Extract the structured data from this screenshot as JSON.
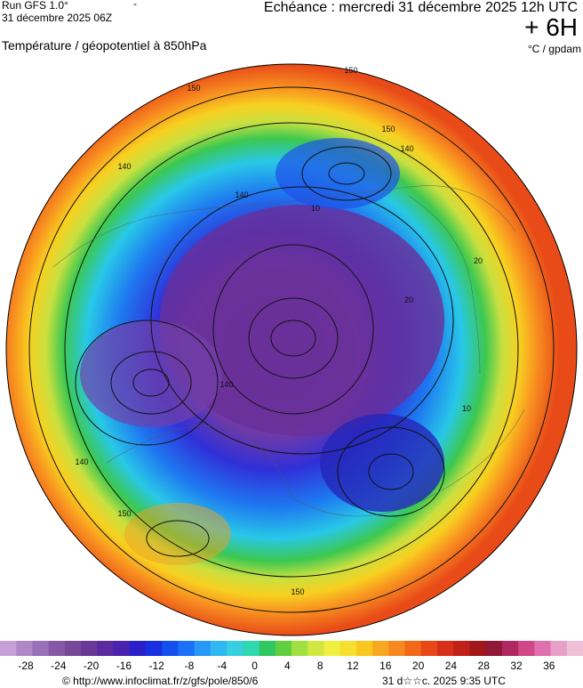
{
  "header": {
    "run": "Run GFS 1.0°",
    "mark": "-",
    "date": "31 décembre 2025 06Z",
    "echeance": "Echéance : mercredi 31 décembre 2025 12h UTC",
    "offset": "+ 6H",
    "field": "Température / géopotentiel à 850hPa",
    "units": "°C / gpdam"
  },
  "map": {
    "labels": [
      "150",
      "150",
      "150",
      "140",
      "140",
      "140",
      "10",
      "20",
      "20",
      "10",
      "140",
      "150",
      "150",
      "140"
    ]
  },
  "colorbar": {
    "labels": [
      "-28",
      "-24",
      "-20",
      "-16",
      "-12",
      "-8",
      "-4",
      "0",
      "4",
      "8",
      "12",
      "16",
      "20",
      "24",
      "28",
      "32",
      "36"
    ]
  },
  "footer": {
    "source": "© http://www.infoclimat.fr/z/gfs/pole/850/6",
    "generated": "31 d☆☆c. 2025  9:35 UTC"
  }
}
